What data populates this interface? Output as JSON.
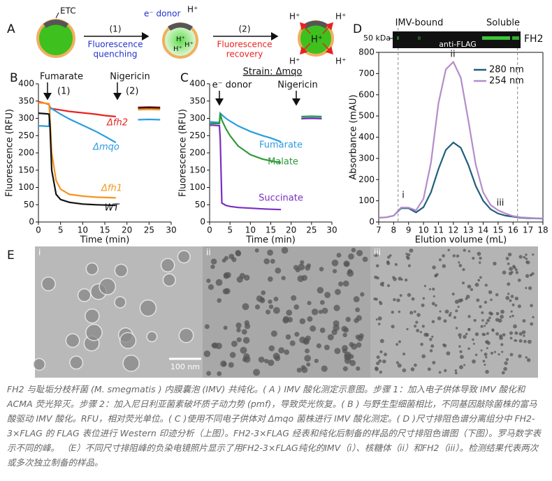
{
  "panel_a": {
    "label": "A",
    "etc": "ETC",
    "e_donor": "e⁻ donor",
    "h": "H⁺",
    "step1": "(1)",
    "step1_lines": [
      "Fluorescence",
      "quenching"
    ],
    "step2": "(2)",
    "step2_lines": [
      "Fluorescence",
      "recovery"
    ]
  },
  "chart_data": [
    {
      "type": "line",
      "label": "B",
      "x_label": "Time (min)",
      "y_label": "Fluorescence (RFU)",
      "xlim": [
        0,
        30
      ],
      "ylim": [
        0,
        400
      ],
      "xticks": [
        0,
        5,
        10,
        15,
        20,
        25,
        30
      ],
      "yticks": [
        0,
        50,
        100,
        150,
        200,
        250,
        300,
        350,
        400
      ],
      "annotations": [
        "Fumarate",
        "(1)",
        "Nigericin",
        "(2)"
      ],
      "x": [
        0,
        1,
        2,
        2.4,
        2.6,
        3,
        4,
        5,
        7,
        10,
        13,
        15,
        17.5,
        20,
        22.5,
        25,
        27.5
      ],
      "series": [
        {
          "name": "Δfh2",
          "color": "#e8231f",
          "values": [
            348,
            345,
            342,
            340,
            332,
            328,
            326,
            324,
            320,
            316,
            312,
            308,
            305,
            null,
            332,
            333,
            332
          ]
        },
        {
          "name": "Δmqo",
          "color": "#2a9de0",
          "values": [
            278,
            278,
            277,
            277,
            330,
            328,
            320,
            312,
            298,
            280,
            262,
            248,
            230,
            null,
            296,
            297,
            296
          ]
        },
        {
          "name": "Δfh1",
          "color": "#f7941d",
          "values": [
            345,
            344,
            343,
            342,
            300,
            200,
            120,
            95,
            80,
            75,
            72,
            71,
            70,
            null,
            325,
            326,
            325
          ]
        },
        {
          "name": "WT",
          "color": "#111111",
          "values": [
            315,
            314,
            313,
            312,
            280,
            150,
            80,
            65,
            57,
            52,
            50,
            49,
            48,
            null,
            330,
            331,
            330
          ]
        }
      ]
    },
    {
      "type": "line",
      "label": "C",
      "title": "Strain: Δmqo",
      "x_label": "Time (min)",
      "y_label": "Fluorescence (RFU)",
      "xlim": [
        0,
        30
      ],
      "ylim": [
        0,
        400
      ],
      "xticks": [
        0,
        5,
        10,
        15,
        20,
        25,
        30
      ],
      "yticks": [
        0,
        50,
        100,
        150,
        200,
        250,
        300,
        350,
        400
      ],
      "annotations": [
        "e⁻ donor",
        "Nigericin"
      ],
      "x": [
        0,
        1,
        2,
        2.4,
        2.6,
        3,
        4,
        5,
        7,
        10,
        13,
        15,
        17.5,
        20,
        22.5,
        25,
        27.5
      ],
      "series": [
        {
          "name": "Fumarate",
          "color": "#2a9de0",
          "values": [
            290,
            289,
            288,
            288,
            315,
            310,
            300,
            292,
            278,
            262,
            250,
            243,
            232,
            null,
            300,
            301,
            300
          ]
        },
        {
          "name": "Malate",
          "color": "#2e9a3a",
          "values": [
            285,
            285,
            285,
            285,
            315,
            295,
            270,
            250,
            220,
            195,
            182,
            177,
            172,
            null,
            305,
            306,
            305
          ]
        },
        {
          "name": "Succinate",
          "color": "#7a2fc0",
          "values": [
            280,
            280,
            279,
            279,
            240,
            55,
            48,
            45,
            42,
            40,
            38,
            37,
            36,
            null,
            299,
            300,
            299
          ]
        }
      ]
    },
    {
      "type": "line",
      "label": "D",
      "x_label": "Elution volume (mL)",
      "y_label": "Absorbance (mAU)",
      "xlim": [
        7,
        18
      ],
      "ylim": [
        0,
        800
      ],
      "xticks": [
        7,
        8,
        9,
        10,
        11,
        12,
        13,
        14,
        15,
        16,
        17,
        18
      ],
      "yticks": [
        0,
        100,
        200,
        300,
        400,
        500,
        600,
        700,
        800
      ],
      "annotations": [
        "i",
        "ii",
        "iii"
      ],
      "blot": {
        "left": "IMV-bound",
        "right": "Soluble",
        "marker": "50 kDa",
        "antibody": "anti-FLAG",
        "protein": "FH2"
      },
      "x": [
        7,
        7.5,
        8,
        8.5,
        9,
        9.5,
        10,
        10.5,
        11,
        11.5,
        12,
        12.5,
        13,
        13.5,
        14,
        14.5,
        15,
        15.5,
        16,
        16.5,
        17,
        17.5,
        18
      ],
      "series": [
        {
          "name": "280 nm",
          "color": "#1f5f7a",
          "values": [
            20,
            22,
            30,
            65,
            65,
            45,
            70,
            140,
            250,
            340,
            375,
            350,
            270,
            170,
            100,
            60,
            40,
            30,
            25,
            20,
            18,
            17,
            16
          ]
        },
        {
          "name": "254 nm",
          "color": "#b48ccb",
          "values": [
            20,
            22,
            30,
            68,
            68,
            55,
            110,
            280,
            560,
            720,
            755,
            680,
            480,
            270,
            140,
            80,
            55,
            40,
            28,
            22,
            20,
            18,
            17
          ]
        }
      ]
    }
  ],
  "panel_e": {
    "label": "E",
    "panels": [
      "i",
      "ii",
      "iii"
    ],
    "scale_bar": "100 nm"
  },
  "caption": "FH2 与耻垢分枝杆菌 (M. smegmatis ) 内膜囊泡 (IMV) 共纯化。( A ) IMV 酸化测定示意图。步骤 1：加入电子供体导致 IMV 酸化和 ACMA 荧光猝灭。步骤 2：加入尼日利亚菌素破坏质子动力势 (pmf)，导致荧光恢复。( B ) 与野生型细菌相比，不同基因敲除菌株的富马酸驱动 IMV 酸化。RFU，相对荧光单位。( C )使用不同电子供体对 Δmqo 菌株进行 IMV 酸化测定。( D )尺寸排阻色谱分离组分中 FH2-3×FLAG 的 FLAG 表位进行 Western 印迹分析（上图）。FH2-3×FLAG 经表和纯化后制备的样品的尺寸排阻色谱图（下图）。罗马数字表示不同的峰。 （E）不同尺寸排阻峰的负染电镜照片显示了用FH2-3×FLAG纯化的IMV（i）、核糖体（ii）和FH2（iii）。检测结果代表两次或多次独立制备的样品。"
}
